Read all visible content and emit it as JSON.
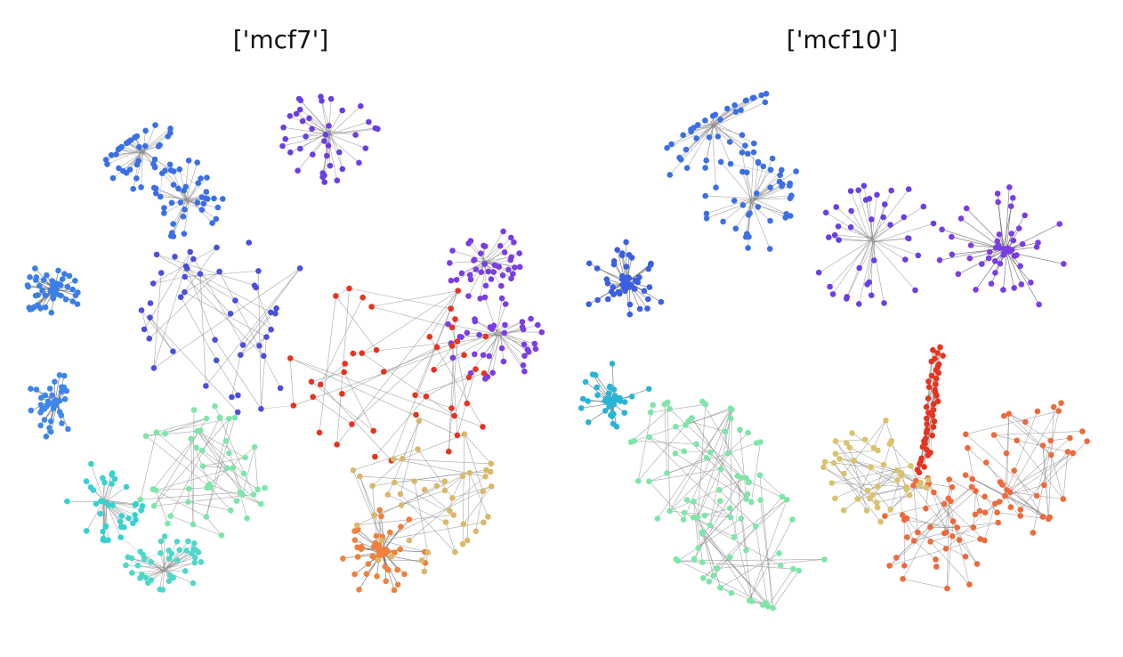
{
  "figure": {
    "panels": [
      {
        "title": "['mcf7']",
        "clusters": [
          {
            "color": "#3a7fe8",
            "shape": "dense-star"
          },
          {
            "color": "#3d86ec",
            "shape": "dense-star"
          },
          {
            "color": "#3b6fe6",
            "shape": "star"
          },
          {
            "color": "#3b6fe6",
            "shape": "star"
          },
          {
            "color": "#6a3ee6",
            "shape": "star"
          },
          {
            "color": "#7a3de6",
            "shape": "star"
          },
          {
            "color": "#7a3de6",
            "shape": "star"
          },
          {
            "color": "#4a4fe0",
            "shape": "tree"
          },
          {
            "color": "#e8331f",
            "shape": "tree"
          },
          {
            "color": "#f0803c",
            "shape": "dense-star"
          },
          {
            "color": "#36d2cf",
            "shape": "star"
          },
          {
            "color": "#4fd8c9",
            "shape": "star"
          },
          {
            "color": "#7de6a8",
            "shape": "tree"
          },
          {
            "color": "#d9b86a",
            "shape": "tree"
          }
        ]
      },
      {
        "title": "['mcf10']",
        "clusters": [
          {
            "color": "#3b5fe4",
            "shape": "dense-star"
          },
          {
            "color": "#3b6fe6",
            "shape": "star"
          },
          {
            "color": "#3b6fe6",
            "shape": "star"
          },
          {
            "color": "#6a3ee6",
            "shape": "star"
          },
          {
            "color": "#7a3de6",
            "shape": "dense-star"
          },
          {
            "color": "#29b5d6",
            "shape": "dense-star"
          },
          {
            "color": "#e8331f",
            "shape": "chain"
          },
          {
            "color": "#ee6a3a",
            "shape": "tree"
          },
          {
            "color": "#ee6a3a",
            "shape": "tree"
          },
          {
            "color": "#7de6a8",
            "shape": "tree"
          },
          {
            "color": "#7de6a8",
            "shape": "tree"
          },
          {
            "color": "#d9c26a",
            "shape": "tree"
          }
        ]
      }
    ]
  }
}
